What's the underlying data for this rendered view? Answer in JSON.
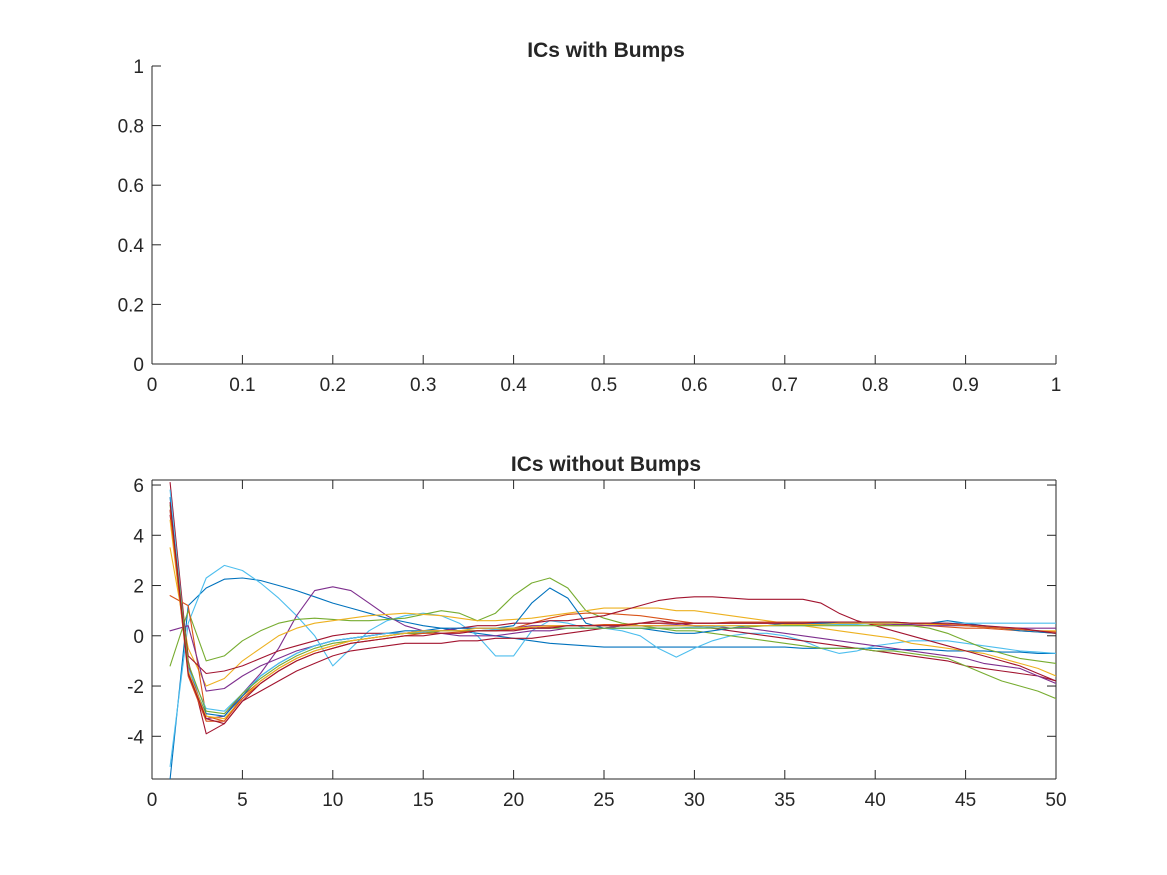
{
  "chart_data": [
    {
      "type": "line",
      "title": "ICs with Bumps",
      "xlabel": "",
      "ylabel": "",
      "xlim": [
        0,
        1
      ],
      "ylim": [
        0,
        1
      ],
      "xticks": [
        "0",
        "0.1",
        "0.2",
        "0.3",
        "0.4",
        "0.5",
        "0.6",
        "0.7",
        "0.8",
        "0.9",
        "1"
      ],
      "yticks": [
        "0",
        "0.2",
        "0.4",
        "0.6",
        "0.8",
        "1"
      ],
      "grid": false,
      "series": []
    },
    {
      "type": "line",
      "title": "ICs without Bumps",
      "xlabel": "",
      "ylabel": "",
      "xlim": [
        0,
        50
      ],
      "ylim": [
        -5.7,
        6.2
      ],
      "xticks": [
        "0",
        "5",
        "10",
        "15",
        "20",
        "25",
        "30",
        "35",
        "40",
        "45",
        "50"
      ],
      "yticks": [
        "-4",
        "-2",
        "0",
        "2",
        "4",
        "6"
      ],
      "grid": false,
      "x": [
        1,
        2,
        3,
        4,
        5,
        6,
        7,
        8,
        9,
        10,
        11,
        12,
        13,
        14,
        15,
        16,
        17,
        18,
        19,
        20,
        21,
        22,
        23,
        24,
        25,
        26,
        27,
        28,
        29,
        30,
        31,
        32,
        33,
        34,
        35,
        36,
        37,
        38,
        39,
        40,
        41,
        42,
        43,
        44,
        45,
        46,
        47,
        48,
        49,
        50
      ],
      "series": [
        {
          "color": "#0072BD",
          "values": [
            -5.7,
            1.2,
            1.9,
            2.25,
            2.3,
            2.2,
            2.0,
            1.8,
            1.55,
            1.3,
            1.1,
            0.9,
            0.7,
            0.55,
            0.4,
            0.3,
            0.2,
            0.1,
            0.0,
            -0.1,
            -0.2,
            -0.3,
            -0.35,
            -0.4,
            -0.45,
            -0.45,
            -0.45,
            -0.45,
            -0.45,
            -0.45,
            -0.45,
            -0.45,
            -0.45,
            -0.45,
            -0.45,
            -0.5,
            -0.5,
            -0.5,
            -0.5,
            -0.5,
            -0.55,
            -0.55,
            -0.55,
            -0.6,
            -0.6,
            -0.6,
            -0.65,
            -0.65,
            -0.7,
            -0.7
          ]
        },
        {
          "color": "#4DBEEE",
          "values": [
            -5.2,
            0.5,
            2.3,
            2.8,
            2.6,
            2.1,
            1.5,
            0.8,
            0.0,
            -1.2,
            -0.5,
            0.2,
            0.6,
            0.8,
            0.9,
            0.8,
            0.5,
            0.0,
            -0.8,
            -0.8,
            0.2,
            0.6,
            0.5,
            0.3,
            0.3,
            0.2,
            0.0,
            -0.5,
            -0.85,
            -0.5,
            -0.2,
            0.0,
            0.1,
            0.1,
            0.0,
            -0.2,
            -0.5,
            -0.7,
            -0.6,
            -0.4,
            -0.3,
            -0.2,
            -0.2,
            -0.2,
            -0.3,
            -0.4,
            -0.5,
            -0.6,
            -0.65,
            -0.7
          ]
        },
        {
          "color": "#A2142F",
          "values": [
            6.1,
            -1.0,
            -3.9,
            -3.5,
            -2.6,
            -2.2,
            -1.8,
            -1.4,
            -1.1,
            -0.8,
            -0.6,
            -0.5,
            -0.4,
            -0.3,
            -0.3,
            -0.3,
            -0.2,
            -0.2,
            -0.1,
            -0.1,
            -0.1,
            0.0,
            0.1,
            0.2,
            0.3,
            0.4,
            0.5,
            0.6,
            0.5,
            0.4,
            0.3,
            0.2,
            0.1,
            0.0,
            -0.1,
            -0.2,
            -0.3,
            -0.4,
            -0.5,
            -0.6,
            -0.7,
            -0.8,
            -0.9,
            -1.0,
            -1.2,
            -1.3,
            -1.4,
            -1.5,
            -1.6,
            -1.8
          ]
        },
        {
          "color": "#7E2F8E",
          "values": [
            5.0,
            -1.2,
            -3.3,
            -3.2,
            -2.3,
            -1.5,
            -0.5,
            0.8,
            1.8,
            1.95,
            1.8,
            1.3,
            0.8,
            0.4,
            0.2,
            0.1,
            0.0,
            0.0,
            0.0,
            0.1,
            0.2,
            0.2,
            0.3,
            0.3,
            0.3,
            0.4,
            0.4,
            0.4,
            0.4,
            0.4,
            0.4,
            0.3,
            0.3,
            0.2,
            0.1,
            0.0,
            -0.1,
            -0.2,
            -0.3,
            -0.4,
            -0.5,
            -0.6,
            -0.7,
            -0.8,
            -0.9,
            -1.1,
            -1.2,
            -1.3,
            -1.6,
            -1.9
          ]
        },
        {
          "color": "#77AC30",
          "values": [
            -1.2,
            1.0,
            -1.0,
            -0.8,
            -0.2,
            0.2,
            0.5,
            0.65,
            0.7,
            0.65,
            0.6,
            0.6,
            0.65,
            0.7,
            0.85,
            1.0,
            0.9,
            0.6,
            0.9,
            1.6,
            2.1,
            2.3,
            1.9,
            1.0,
            0.7,
            0.5,
            0.4,
            0.3,
            0.2,
            0.2,
            0.1,
            0.0,
            -0.1,
            -0.2,
            -0.3,
            -0.4,
            -0.5,
            -0.5,
            -0.5,
            -0.6,
            -0.6,
            -0.7,
            -0.8,
            -0.9,
            -1.2,
            -1.5,
            -1.8,
            -2.0,
            -2.2,
            -2.5
          ]
        },
        {
          "color": "#EDB120",
          "values": [
            3.5,
            -0.5,
            -2.0,
            -1.7,
            -1.0,
            -0.5,
            0.0,
            0.3,
            0.5,
            0.6,
            0.7,
            0.8,
            0.85,
            0.9,
            0.85,
            0.8,
            0.7,
            0.6,
            0.6,
            0.65,
            0.7,
            0.8,
            0.9,
            1.0,
            1.1,
            1.1,
            1.1,
            1.1,
            1.0,
            1.0,
            0.9,
            0.8,
            0.7,
            0.6,
            0.5,
            0.4,
            0.3,
            0.2,
            0.1,
            0.0,
            -0.1,
            -0.3,
            -0.4,
            -0.5,
            -0.6,
            -0.7,
            -0.9,
            -1.1,
            -1.3,
            -1.6
          ]
        },
        {
          "color": "#D95319",
          "values": [
            1.6,
            1.2,
            -3.2,
            -3.4,
            -2.4,
            -1.8,
            -1.3,
            -0.9,
            -0.6,
            -0.4,
            -0.2,
            -0.1,
            0.0,
            0.1,
            0.2,
            0.2,
            0.2,
            0.2,
            0.25,
            0.3,
            0.5,
            0.7,
            0.85,
            0.9,
            0.9,
            0.85,
            0.8,
            0.7,
            0.6,
            0.5,
            0.5,
            0.5,
            0.5,
            0.5,
            0.5,
            0.5,
            0.5,
            0.5,
            0.5,
            0.45,
            0.4,
            0.4,
            0.4,
            0.35,
            0.3,
            0.3,
            0.25,
            0.2,
            0.15,
            0.1
          ]
        },
        {
          "color": "#A2142F",
          "values": [
            4.8,
            -0.8,
            -1.5,
            -1.4,
            -1.2,
            -0.9,
            -0.6,
            -0.4,
            -0.2,
            0.0,
            0.1,
            0.1,
            0.1,
            0.1,
            0.1,
            0.2,
            0.3,
            0.4,
            0.4,
            0.5,
            0.5,
            0.6,
            0.6,
            0.7,
            0.8,
            1.0,
            1.2,
            1.4,
            1.5,
            1.55,
            1.55,
            1.5,
            1.45,
            1.45,
            1.45,
            1.45,
            1.3,
            0.9,
            0.6,
            0.4,
            0.2,
            0.0,
            -0.2,
            -0.4,
            -0.6,
            -0.8,
            -1.0,
            -1.2,
            -1.5,
            -1.8
          ]
        },
        {
          "color": "#7E2F8E",
          "values": [
            0.2,
            0.4,
            -2.2,
            -2.1,
            -1.6,
            -1.2,
            -0.9,
            -0.6,
            -0.4,
            -0.2,
            -0.1,
            0.0,
            0.1,
            0.1,
            0.2,
            0.2,
            0.3,
            0.3,
            0.3,
            0.3,
            0.4,
            0.4,
            0.4,
            0.4,
            0.4,
            0.4,
            0.4,
            0.4,
            0.45,
            0.5,
            0.5,
            0.5,
            0.5,
            0.5,
            0.5,
            0.5,
            0.5,
            0.5,
            0.5,
            0.5,
            0.45,
            0.45,
            0.4,
            0.4,
            0.4,
            0.35,
            0.3,
            0.3,
            0.3,
            0.3
          ]
        },
        {
          "color": "#0072BD",
          "values": [
            5.5,
            -1.5,
            -3.1,
            -3.2,
            -2.4,
            -1.6,
            -1.1,
            -0.7,
            -0.4,
            -0.2,
            -0.1,
            0.0,
            0.1,
            0.2,
            0.2,
            0.3,
            0.3,
            0.3,
            0.3,
            0.4,
            1.3,
            1.9,
            1.5,
            0.5,
            0.3,
            0.3,
            0.3,
            0.2,
            0.1,
            0.1,
            0.2,
            0.3,
            0.4,
            0.4,
            0.5,
            0.5,
            0.5,
            0.5,
            0.5,
            0.5,
            0.5,
            0.5,
            0.5,
            0.6,
            0.5,
            0.4,
            0.3,
            0.2,
            0.15,
            0.1
          ]
        },
        {
          "color": "#4DBEEE",
          "values": [
            5.8,
            -1.3,
            -2.9,
            -3.0,
            -2.3,
            -1.6,
            -1.1,
            -0.7,
            -0.4,
            -0.2,
            -0.1,
            0.0,
            0.1,
            0.1,
            0.15,
            0.2,
            0.2,
            0.2,
            0.25,
            0.3,
            0.3,
            0.3,
            0.3,
            0.3,
            0.3,
            0.3,
            0.3,
            0.3,
            0.3,
            0.35,
            0.35,
            0.4,
            0.4,
            0.4,
            0.4,
            0.4,
            0.45,
            0.45,
            0.45,
            0.5,
            0.5,
            0.5,
            0.5,
            0.5,
            0.5,
            0.5,
            0.5,
            0.5,
            0.5,
            0.5
          ]
        },
        {
          "color": "#77AC30",
          "values": [
            5.2,
            -1.1,
            -3.0,
            -3.1,
            -2.3,
            -1.7,
            -1.2,
            -0.8,
            -0.5,
            -0.3,
            -0.2,
            -0.1,
            0.0,
            0.1,
            0.1,
            0.2,
            0.2,
            0.2,
            0.2,
            0.3,
            0.3,
            0.3,
            0.3,
            0.3,
            0.3,
            0.3,
            0.3,
            0.3,
            0.3,
            0.3,
            0.3,
            0.3,
            0.35,
            0.4,
            0.4,
            0.4,
            0.4,
            0.4,
            0.4,
            0.4,
            0.4,
            0.4,
            0.3,
            0.1,
            -0.2,
            -0.5,
            -0.7,
            -0.9,
            -1.0,
            -1.1
          ]
        },
        {
          "color": "#EDB120",
          "values": [
            4.6,
            -1.4,
            -3.2,
            -3.3,
            -2.5,
            -1.8,
            -1.3,
            -0.9,
            -0.6,
            -0.4,
            -0.2,
            -0.1,
            0.0,
            0.1,
            0.2,
            0.2,
            0.2,
            0.3,
            0.3,
            0.3,
            0.35,
            0.4,
            0.4,
            0.4,
            0.4,
            0.4,
            0.4,
            0.4,
            0.4,
            0.4,
            0.4,
            0.4,
            0.4,
            0.4,
            0.45,
            0.45,
            0.45,
            0.5,
            0.5,
            0.5,
            0.5,
            0.5,
            0.45,
            0.45,
            0.4,
            0.35,
            0.3,
            0.25,
            0.2,
            0.2
          ]
        },
        {
          "color": "#D95319",
          "values": [
            5.0,
            -1.6,
            -3.4,
            -3.4,
            -2.5,
            -1.9,
            -1.4,
            -1.0,
            -0.7,
            -0.5,
            -0.3,
            -0.2,
            -0.1,
            0.0,
            0.1,
            0.1,
            0.15,
            0.2,
            0.2,
            0.25,
            0.3,
            0.35,
            0.4,
            0.4,
            0.45,
            0.45,
            0.5,
            0.5,
            0.5,
            0.5,
            0.5,
            0.55,
            0.55,
            0.55,
            0.55,
            0.55,
            0.55,
            0.55,
            0.55,
            0.55,
            0.55,
            0.5,
            0.5,
            0.45,
            0.4,
            0.35,
            0.3,
            0.25,
            0.2,
            0.15
          ]
        },
        {
          "color": "#A2142F",
          "values": [
            5.3,
            -1.5,
            -3.3,
            -3.5,
            -2.6,
            -1.9,
            -1.4,
            -1.0,
            -0.7,
            -0.5,
            -0.3,
            -0.2,
            -0.1,
            0.0,
            0.0,
            0.1,
            0.1,
            0.2,
            0.2,
            0.2,
            0.3,
            0.3,
            0.4,
            0.4,
            0.4,
            0.4,
            0.5,
            0.5,
            0.5,
            0.5,
            0.5,
            0.5,
            0.5,
            0.5,
            0.5,
            0.5,
            0.55,
            0.55,
            0.55,
            0.55,
            0.55,
            0.5,
            0.5,
            0.5,
            0.45,
            0.4,
            0.35,
            0.3,
            0.2,
            0.1
          ]
        }
      ]
    }
  ]
}
